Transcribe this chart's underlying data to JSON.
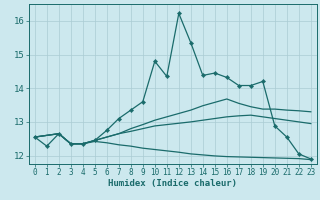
{
  "xlabel": "Humidex (Indice chaleur)",
  "bg_color": "#cce8ee",
  "line_color": "#1a6b6b",
  "grid_color": "#aaccd4",
  "xlim": [
    -0.5,
    23.5
  ],
  "ylim": [
    11.75,
    16.5
  ],
  "yticks": [
    12,
    13,
    14,
    15,
    16
  ],
  "xticks": [
    0,
    1,
    2,
    3,
    4,
    5,
    6,
    7,
    8,
    9,
    10,
    11,
    12,
    13,
    14,
    15,
    16,
    17,
    18,
    19,
    20,
    21,
    22,
    23
  ],
  "line1_x": [
    0,
    1,
    2,
    3,
    4,
    5,
    6,
    7,
    8,
    9,
    10,
    11,
    12,
    13,
    14,
    15,
    16,
    17,
    18,
    19,
    20,
    21,
    22,
    23
  ],
  "line1_y": [
    12.55,
    12.28,
    12.65,
    12.35,
    12.35,
    12.45,
    12.75,
    13.1,
    13.35,
    13.6,
    14.8,
    14.35,
    16.22,
    15.35,
    14.38,
    14.45,
    14.32,
    14.08,
    14.08,
    14.2,
    12.88,
    12.55,
    12.05,
    11.9
  ],
  "line2_x": [
    0,
    2,
    3,
    4,
    5,
    6,
    7,
    8,
    9,
    10,
    11,
    12,
    13,
    14,
    15,
    16,
    17,
    18,
    19,
    20,
    21,
    22,
    23
  ],
  "line2_y": [
    12.55,
    12.65,
    12.35,
    12.35,
    12.45,
    12.55,
    12.65,
    12.8,
    12.92,
    13.05,
    13.15,
    13.25,
    13.35,
    13.48,
    13.58,
    13.68,
    13.55,
    13.45,
    13.38,
    13.38,
    13.35,
    13.33,
    13.3
  ],
  "line3_x": [
    0,
    2,
    3,
    4,
    5,
    6,
    7,
    8,
    9,
    10,
    11,
    12,
    13,
    14,
    15,
    16,
    17,
    18,
    19,
    20,
    21,
    22,
    23
  ],
  "line3_y": [
    12.55,
    12.65,
    12.35,
    12.35,
    12.45,
    12.55,
    12.65,
    12.72,
    12.8,
    12.88,
    12.92,
    12.96,
    13.0,
    13.05,
    13.1,
    13.15,
    13.18,
    13.2,
    13.15,
    13.1,
    13.05,
    13.0,
    12.95
  ],
  "line4_x": [
    0,
    2,
    3,
    4,
    5,
    6,
    7,
    8,
    9,
    10,
    11,
    12,
    13,
    14,
    15,
    16,
    17,
    18,
    19,
    20,
    21,
    22,
    23
  ],
  "line4_y": [
    12.55,
    12.65,
    12.35,
    12.35,
    12.42,
    12.38,
    12.32,
    12.28,
    12.22,
    12.18,
    12.14,
    12.1,
    12.05,
    12.02,
    11.99,
    11.97,
    11.96,
    11.95,
    11.94,
    11.93,
    11.92,
    11.91,
    11.88
  ]
}
